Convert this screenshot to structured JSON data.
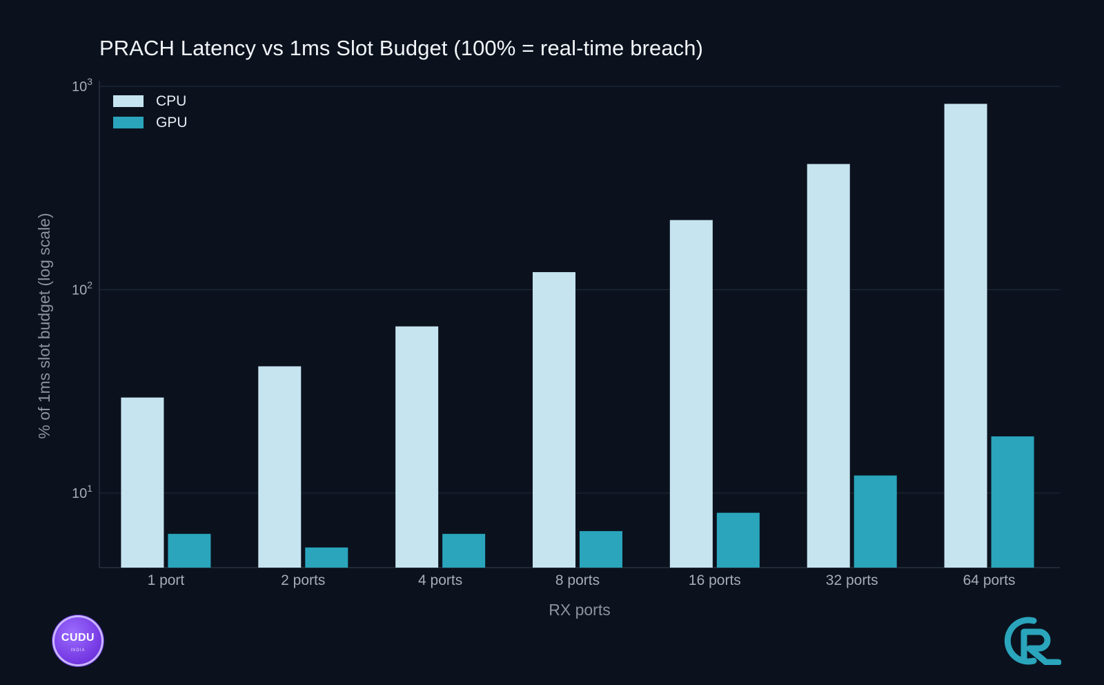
{
  "chart_data": {
    "type": "bar",
    "title": "PRACH Latency vs 1ms Slot Budget (100% = real-time breach)",
    "xlabel": "RX ports",
    "ylabel": "% of 1ms slot budget (log scale)",
    "yscale": "log",
    "ylim": [
      4.3,
      1000
    ],
    "yticks": [
      {
        "value": 10,
        "base": "10",
        "exp": "1"
      },
      {
        "value": 100,
        "base": "10",
        "exp": "2"
      },
      {
        "value": 1000,
        "base": "10",
        "exp": "3"
      }
    ],
    "grid": true,
    "legend_position": "top-left",
    "categories": [
      "1 port",
      "2 ports",
      "4 ports",
      "8 ports",
      "16 ports",
      "32 ports",
      "64 ports"
    ],
    "series": [
      {
        "name": "CPU",
        "color": "#c6e4ef",
        "values": [
          29.5,
          42,
          66,
          122,
          220,
          415,
          820
        ]
      },
      {
        "name": "GPU",
        "color": "#2aa5bc",
        "values": [
          6.3,
          5.4,
          6.3,
          6.5,
          8.0,
          12.2,
          19.0
        ]
      }
    ]
  },
  "badges": {
    "left_badge_text": "CUDU",
    "left_badge_subtext": "INDIA",
    "left_badge_colors": [
      "#9b6dff",
      "#5c22c9"
    ],
    "right_logo_color": "#2aa5bc",
    "right_logo_icon": "r-monogram-icon"
  }
}
